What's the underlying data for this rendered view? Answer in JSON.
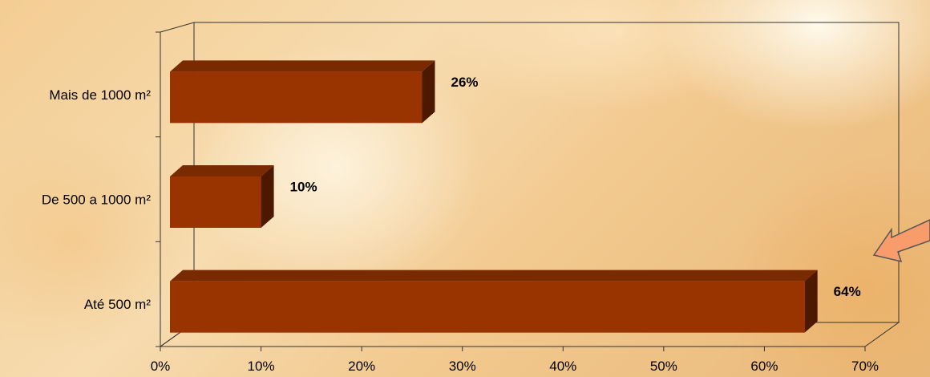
{
  "chart_data": {
    "type": "bar",
    "orientation": "horizontal",
    "style": "3d",
    "categories": [
      "Mais de 1000 m²",
      "De 500 a 1000 m²",
      "Até 500 m²"
    ],
    "values": [
      26,
      10,
      64
    ],
    "data_labels": [
      "26%",
      "10%",
      "64%"
    ],
    "x_ticks": [
      "0%",
      "10%",
      "20%",
      "30%",
      "40%",
      "50%",
      "60%",
      "70%"
    ],
    "xlim": [
      0,
      70
    ],
    "title": "",
    "xlabel": "",
    "ylabel": "",
    "grid": false,
    "legend": "none",
    "colors": {
      "bar_front": "#993300",
      "bar_top": "#7a2a00",
      "bar_side": "#4d1800",
      "axis": "#333333",
      "arrow_fill": "#f89c6c",
      "arrow_stroke": "#555555"
    },
    "annotations": [
      {
        "type": "arrow",
        "icon": "arrow-icon",
        "points_to": "Até 500 m²"
      }
    ]
  }
}
